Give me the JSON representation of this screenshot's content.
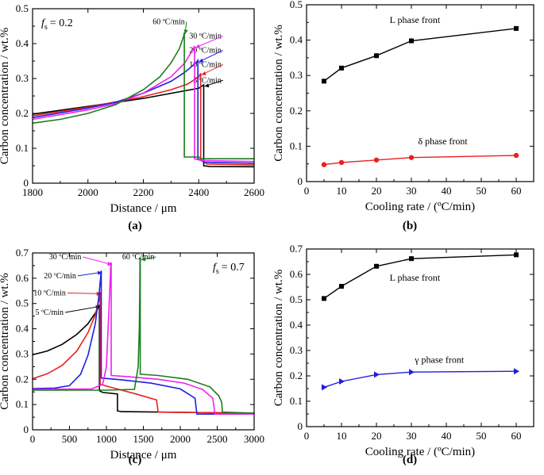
{
  "chart_data": [
    {
      "panel": "(a)",
      "type": "line",
      "annotation_prefix": "f",
      "annotation_sub": "s",
      "annotation_value": "= 0.2",
      "xlabel": "Distance / μm",
      "ylabel": "Carbon concentration / wt.%",
      "xlim": [
        1800,
        2600
      ],
      "ylim": [
        0,
        0.5
      ],
      "xticks": [
        1800,
        2000,
        2200,
        2400,
        2600
      ],
      "yticks": [
        0,
        0.1,
        0.2,
        0.3,
        0.4,
        0.5
      ],
      "series": [
        {
          "name": "5 ºC/min",
          "color": "#000000",
          "label_pos": [
            2482,
            0.288
          ],
          "points": [
            [
              1800,
              0.198
            ],
            [
              2000,
              0.22
            ],
            [
              2200,
              0.243
            ],
            [
              2400,
              0.272
            ],
            [
              2418,
              0.282
            ],
            [
              2418,
              0.05
            ],
            [
              2440,
              0.048
            ],
            [
              2600,
              0.047
            ]
          ]
        },
        {
          "name": "10 ºC/min",
          "color": "#e82020",
          "label_pos": [
            2482,
            0.333
          ],
          "points": [
            [
              1800,
              0.193
            ],
            [
              2000,
              0.218
            ],
            [
              2200,
              0.248
            ],
            [
              2300,
              0.268
            ],
            [
              2360,
              0.284
            ],
            [
              2400,
              0.305
            ],
            [
              2407,
              0.315
            ],
            [
              2407,
              0.068
            ],
            [
              2430,
              0.055
            ],
            [
              2600,
              0.052
            ]
          ]
        },
        {
          "name": "20 ºC/min",
          "color": "#1f1fe0",
          "label_pos": [
            2482,
            0.374
          ],
          "points": [
            [
              1800,
              0.188
            ],
            [
              2000,
              0.215
            ],
            [
              2100,
              0.232
            ],
            [
              2200,
              0.258
            ],
            [
              2300,
              0.292
            ],
            [
              2350,
              0.318
            ],
            [
              2390,
              0.345
            ],
            [
              2397,
              0.352
            ],
            [
              2397,
              0.07
            ],
            [
              2420,
              0.06
            ],
            [
              2600,
              0.057
            ]
          ]
        },
        {
          "name": "30 ºC/min",
          "color": "#f020f0",
          "label_pos": [
            2482,
            0.415
          ],
          "points": [
            [
              1800,
              0.183
            ],
            [
              2000,
              0.21
            ],
            [
              2100,
              0.228
            ],
            [
              2200,
              0.258
            ],
            [
              2300,
              0.305
            ],
            [
              2350,
              0.345
            ],
            [
              2380,
              0.385
            ],
            [
              2385,
              0.393
            ],
            [
              2385,
              0.07
            ],
            [
              2410,
              0.065
            ],
            [
              2600,
              0.062
            ]
          ]
        },
        {
          "name": "60 ºC/min",
          "color": "#1b7e1b",
          "label_pos": [
            2350,
            0.456
          ],
          "points": [
            [
              1800,
              0.172
            ],
            [
              1900,
              0.183
            ],
            [
              2000,
              0.2
            ],
            [
              2100,
              0.225
            ],
            [
              2200,
              0.268
            ],
            [
              2260,
              0.305
            ],
            [
              2300,
              0.345
            ],
            [
              2330,
              0.385
            ],
            [
              2345,
              0.42
            ],
            [
              2348,
              0.432
            ],
            [
              2348,
              0.075
            ],
            [
              2400,
              0.075
            ],
            [
              2410,
              0.07
            ],
            [
              2600,
              0.07
            ]
          ]
        }
      ]
    },
    {
      "panel": "(b)",
      "type": "line",
      "xlabel": "Cooling rate / (ºC/min)",
      "ylabel": "Carbon concentration / wt.%",
      "xlim": [
        0,
        65
      ],
      "ylim": [
        0,
        0.5
      ],
      "xticks": [
        0,
        10,
        20,
        30,
        40,
        50,
        60
      ],
      "yticks": [
        0,
        0.1,
        0.2,
        0.3,
        0.4,
        0.5
      ],
      "series": [
        {
          "name": "L phase front",
          "color": "#000000",
          "marker": "square",
          "x": [
            5,
            10,
            20,
            30,
            60
          ],
          "values": [
            0.284,
            0.321,
            0.356,
            0.398,
            0.433
          ],
          "label_pos": [
            31,
            0.448
          ]
        },
        {
          "name": "δ phase front",
          "color": "#e82020",
          "marker": "circle",
          "x": [
            5,
            10,
            20,
            30,
            60
          ],
          "values": [
            0.048,
            0.054,
            0.061,
            0.068,
            0.074
          ],
          "label_pos": [
            39,
            0.105
          ]
        }
      ]
    },
    {
      "panel": "(c)",
      "type": "line",
      "annotation_prefix": "f",
      "annotation_sub": "s",
      "annotation_value": "= 0.7",
      "xlabel": "Distance / μm",
      "ylabel": "Carbon concentration / wt.%",
      "xlim": [
        0,
        3000
      ],
      "ylim": [
        0,
        0.7
      ],
      "xticks": [
        0,
        500,
        1000,
        1500,
        2000,
        2500,
        3000
      ],
      "yticks": [
        0,
        0.1,
        0.2,
        0.3,
        0.4,
        0.5,
        0.6,
        0.7
      ],
      "series": [
        {
          "name": "5 ºC/min",
          "color": "#000000",
          "label_pos": [
            420,
            0.455
          ],
          "points": [
            [
              0,
              0.297
            ],
            [
              200,
              0.312
            ],
            [
              400,
              0.338
            ],
            [
              600,
              0.378
            ],
            [
              750,
              0.42
            ],
            [
              850,
              0.462
            ],
            [
              900,
              0.49
            ],
            [
              905,
              0.495
            ],
            [
              905,
              0.155
            ],
            [
              950,
              0.148
            ],
            [
              1150,
              0.142
            ],
            [
              1150,
              0.075
            ],
            [
              1200,
              0.072
            ],
            [
              3000,
              0.066
            ]
          ]
        },
        {
          "name": "10 ºC/min",
          "color": "#e82020",
          "label_pos": [
            450,
            0.532
          ],
          "points": [
            [
              0,
              0.202
            ],
            [
              200,
              0.222
            ],
            [
              400,
              0.255
            ],
            [
              600,
              0.312
            ],
            [
              750,
              0.385
            ],
            [
              850,
              0.455
            ],
            [
              900,
              0.515
            ],
            [
              915,
              0.545
            ],
            [
              915,
              0.18
            ],
            [
              1100,
              0.165
            ],
            [
              1400,
              0.142
            ],
            [
              1680,
              0.118
            ],
            [
              1700,
              0.07
            ],
            [
              3000,
              0.066
            ]
          ]
        },
        {
          "name": "20 ºC/min",
          "color": "#1f1fe0",
          "label_pos": [
            590,
            0.6
          ],
          "points": [
            [
              0,
              0.163
            ],
            [
              300,
              0.165
            ],
            [
              500,
              0.175
            ],
            [
              650,
              0.22
            ],
            [
              750,
              0.295
            ],
            [
              850,
              0.42
            ],
            [
              900,
              0.535
            ],
            [
              930,
              0.63
            ],
            [
              930,
              0.205
            ],
            [
              1200,
              0.198
            ],
            [
              1600,
              0.185
            ],
            [
              2000,
              0.162
            ],
            [
              2200,
              0.125
            ],
            [
              2225,
              0.062
            ],
            [
              3000,
              0.063
            ]
          ]
        },
        {
          "name": "30 ºC/min",
          "color": "#f020f0",
          "label_pos": [
            660,
            0.675
          ],
          "points": [
            [
              0,
              0.16
            ],
            [
              800,
              0.162
            ],
            [
              950,
              0.18
            ],
            [
              1000,
              0.25
            ],
            [
              1030,
              0.45
            ],
            [
              1060,
              0.66
            ],
            [
              1065,
              0.66
            ],
            [
              1065,
              0.215
            ],
            [
              1300,
              0.21
            ],
            [
              1700,
              0.2
            ],
            [
              2050,
              0.185
            ],
            [
              2300,
              0.16
            ],
            [
              2440,
              0.125
            ],
            [
              2470,
              0.062
            ],
            [
              3000,
              0.063
            ]
          ]
        },
        {
          "name": "60 ºC/min",
          "color": "#1b7e1b",
          "label_pos": [
            1650,
            0.675
          ],
          "points": [
            [
              0,
              0.157
            ],
            [
              1000,
              0.157
            ],
            [
              1380,
              0.16
            ],
            [
              1430,
              0.25
            ],
            [
              1445,
              0.4
            ],
            [
              1452,
              0.55
            ],
            [
              1455,
              0.68
            ],
            [
              1458,
              0.68
            ],
            [
              1458,
              0.22
            ],
            [
              1700,
              0.215
            ],
            [
              2100,
              0.2
            ],
            [
              2400,
              0.17
            ],
            [
              2520,
              0.135
            ],
            [
              2560,
              0.11
            ],
            [
              2570,
              0.07
            ],
            [
              3000,
              0.066
            ]
          ]
        }
      ]
    },
    {
      "panel": "(d)",
      "type": "line",
      "xlabel": "Cooling rate / (ºC/min)",
      "ylabel": "Carbon concentration / wt.%",
      "xlim": [
        0,
        65
      ],
      "ylim": [
        0,
        0.7
      ],
      "xticks": [
        0,
        10,
        20,
        30,
        40,
        50,
        60
      ],
      "yticks": [
        0,
        0.1,
        0.2,
        0.3,
        0.4,
        0.5,
        0.6,
        0.7
      ],
      "series": [
        {
          "name": "L phase front",
          "color": "#000000",
          "marker": "square",
          "x": [
            5,
            10,
            20,
            30,
            60
          ],
          "values": [
            0.505,
            0.553,
            0.632,
            0.662,
            0.677
          ],
          "label_pos": [
            31,
            0.575
          ]
        },
        {
          "name": "γ phase front",
          "color": "#1f1fe0",
          "marker": "triangle-right",
          "x": [
            5,
            10,
            20,
            30,
            60
          ],
          "values": [
            0.155,
            0.178,
            0.205,
            0.215,
            0.218
          ],
          "label_pos": [
            38,
            0.252
          ]
        }
      ]
    }
  ]
}
